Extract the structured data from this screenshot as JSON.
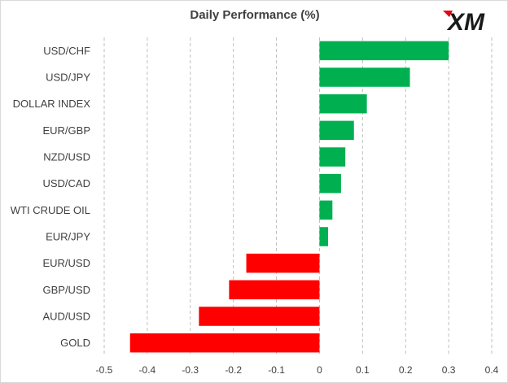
{
  "brand": {
    "logo_text": "XM"
  },
  "chart_data": {
    "type": "bar",
    "orientation": "horizontal",
    "title": "Daily Performance (%)",
    "xlabel": "",
    "ylabel": "",
    "categories": [
      "USD/CHF",
      "USD/JPY",
      "DOLLAR INDEX",
      "EUR/GBP",
      "NZD/USD",
      "USD/CAD",
      "WTI CRUDE OIL",
      "EUR/JPY",
      "EUR/USD",
      "GBP/USD",
      "AUD/USD",
      "GOLD"
    ],
    "values": [
      0.3,
      0.21,
      0.11,
      0.08,
      0.06,
      0.05,
      0.03,
      0.02,
      -0.17,
      -0.21,
      -0.28,
      -0.44
    ],
    "xlim": [
      -0.5,
      0.4
    ],
    "xticks": [
      -0.5,
      -0.4,
      -0.3,
      -0.2,
      -0.1,
      0,
      0.1,
      0.2,
      0.3,
      0.4
    ],
    "xtick_labels": [
      "-0.5",
      "-0.4",
      "-0.3",
      "-0.2",
      "-0.1",
      "0",
      "0.1",
      "0.2",
      "0.3",
      "0.4"
    ],
    "grid": "vertical dashed",
    "legend": "none",
    "colors": {
      "positive": "#00b050",
      "negative": "#ff0000",
      "grid": "#bfbfbf",
      "text": "#404040"
    }
  }
}
